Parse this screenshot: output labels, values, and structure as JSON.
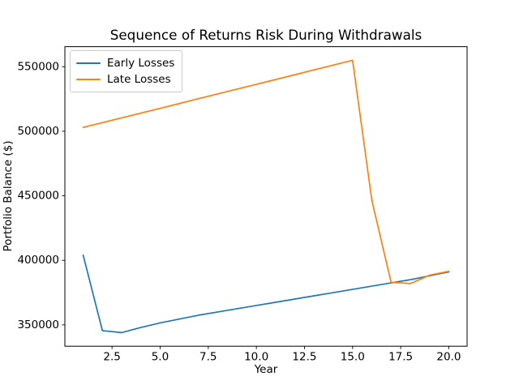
{
  "chart_data": {
    "type": "line",
    "title": "Sequence of Returns Risk During Withdrawals",
    "xlabel": "Year",
    "ylabel": "Portfolio Balance ($)",
    "x": [
      1,
      2,
      3,
      4,
      5,
      6,
      7,
      8,
      9,
      10,
      11,
      12,
      13,
      14,
      15,
      16,
      17,
      18,
      19,
      20
    ],
    "series": [
      {
        "name": "Early Losses",
        "color": "#1f77b4",
        "values": [
          404000,
          345500,
          344000,
          348000,
          351500,
          354500,
          357500,
          360000,
          362500,
          365000,
          367500,
          370000,
          372500,
          375000,
          377500,
          380000,
          382500,
          385000,
          388000,
          391000
        ]
      },
      {
        "name": "Late Losses",
        "color": "#ff7f0e",
        "values": [
          503000,
          506700,
          510400,
          514100,
          517800,
          521500,
          525300,
          529000,
          532700,
          536400,
          540100,
          543800,
          547600,
          551300,
          555000,
          446500,
          383000,
          382000,
          388500,
          391500
        ]
      }
    ],
    "xtick_values": [
      2.5,
      5.0,
      7.5,
      10.0,
      12.5,
      15.0,
      17.5,
      20.0
    ],
    "xtick_labels": [
      "2.5",
      "5.0",
      "7.5",
      "10.0",
      "12.5",
      "15.0",
      "17.5",
      "20.0"
    ],
    "ytick_values": [
      350000,
      400000,
      450000,
      500000,
      550000
    ],
    "ytick_labels": [
      "350000",
      "400000",
      "450000",
      "500000",
      "550000"
    ],
    "xlim": [
      0.05,
      20.95
    ],
    "ylim": [
      333450,
      565550
    ],
    "legend_position": "upper left",
    "grid": false
  }
}
